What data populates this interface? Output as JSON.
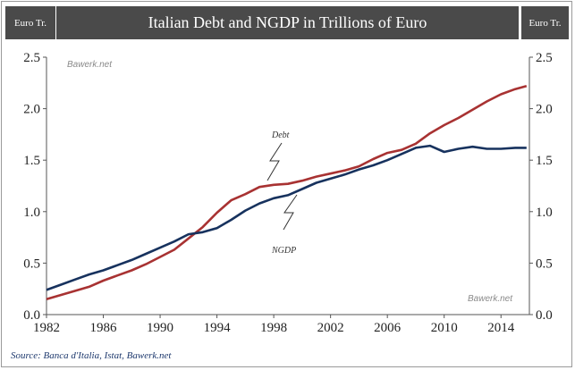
{
  "header": {
    "title": "Italian Debt and NGDP in Trillions of Euro",
    "unit_left": "Euro Tr.",
    "unit_right": "Euro Tr."
  },
  "watermarks": [
    "Bawerk.net",
    "Bawerk.net"
  ],
  "source": "Source: Banca d'Italia, Istat, Bawerk.net",
  "colors": {
    "debt": "#a83232",
    "ngdp": "#17325e",
    "header_bg": "#4a4a4a"
  },
  "chart_data": {
    "type": "line",
    "title": "Italian Debt and NGDP in Trillions of Euro",
    "xlabel": "",
    "ylabel": "Euro Tr.",
    "xlim": [
      1982,
      2016
    ],
    "ylim": [
      0,
      2.5
    ],
    "x_ticks": [
      "1982",
      "1986",
      "1990",
      "1994",
      "1998",
      "2002",
      "2006",
      "2010",
      "2014"
    ],
    "y_ticks": [
      "0.0",
      "0.5",
      "1.0",
      "1.5",
      "2.0",
      "2.5"
    ],
    "annotations": [
      "Debt",
      "NGDP"
    ],
    "series": [
      {
        "name": "Debt",
        "color": "#a83232",
        "x": [
          1982,
          1983,
          1984,
          1985,
          1986,
          1987,
          1988,
          1989,
          1990,
          1991,
          1992,
          1993,
          1994,
          1995,
          1996,
          1997,
          1998,
          1999,
          2000,
          2001,
          2002,
          2003,
          2004,
          2005,
          2006,
          2007,
          2008,
          2009,
          2010,
          2011,
          2012,
          2013,
          2014,
          2015,
          2015.8
        ],
        "values": [
          0.15,
          0.19,
          0.23,
          0.27,
          0.33,
          0.38,
          0.43,
          0.49,
          0.56,
          0.63,
          0.74,
          0.85,
          0.99,
          1.11,
          1.17,
          1.24,
          1.26,
          1.27,
          1.3,
          1.34,
          1.37,
          1.4,
          1.44,
          1.51,
          1.57,
          1.6,
          1.66,
          1.76,
          1.84,
          1.91,
          1.99,
          2.07,
          2.14,
          2.19,
          2.22
        ]
      },
      {
        "name": "NGDP",
        "color": "#17325e",
        "x": [
          1982,
          1983,
          1984,
          1985,
          1986,
          1987,
          1988,
          1989,
          1990,
          1991,
          1992,
          1993,
          1994,
          1995,
          1996,
          1997,
          1998,
          1999,
          2000,
          2001,
          2002,
          2003,
          2004,
          2005,
          2006,
          2007,
          2008,
          2009,
          2010,
          2011,
          2012,
          2013,
          2014,
          2015,
          2015.8
        ],
        "values": [
          0.24,
          0.29,
          0.34,
          0.39,
          0.43,
          0.48,
          0.53,
          0.59,
          0.65,
          0.71,
          0.78,
          0.8,
          0.84,
          0.92,
          1.01,
          1.08,
          1.13,
          1.16,
          1.22,
          1.28,
          1.32,
          1.36,
          1.41,
          1.45,
          1.5,
          1.56,
          1.62,
          1.64,
          1.58,
          1.61,
          1.63,
          1.61,
          1.61,
          1.62,
          1.62
        ]
      }
    ]
  }
}
